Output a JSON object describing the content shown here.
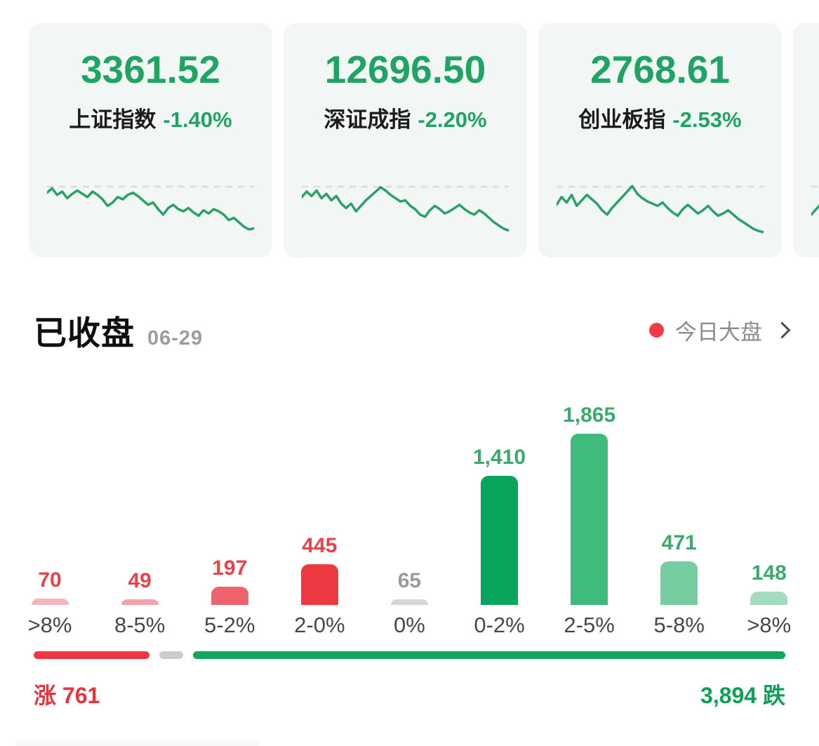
{
  "colors": {
    "index_green": "#1fa463",
    "card_bg": "#f2f6f4",
    "spark_line": "#2ba16a",
    "dash_gray": "#d9dcda",
    "title_black": "#101010",
    "date_gray": "#9c9c9c",
    "link_gray": "#8b8b8b",
    "chevron_gray": "#4d4d4d",
    "dot_red": "#f23b43",
    "axis_gray": "#474747",
    "up_red": "#e2373f",
    "down_green": "#0fa058"
  },
  "index_cards": [
    {
      "value": "3361.52",
      "name": "上证指数",
      "change": "-1.40%",
      "sparkline": [
        80,
        88,
        76,
        82,
        70,
        78,
        84,
        78,
        72,
        82,
        76,
        68,
        56,
        62,
        72,
        68,
        76,
        80,
        74,
        66,
        58,
        62,
        50,
        40,
        52,
        58,
        50,
        46,
        52,
        44,
        38,
        48,
        42,
        50,
        46,
        40,
        30,
        34,
        26,
        18,
        13,
        15
      ]
    },
    {
      "value": "12696.50",
      "name": "深证成指",
      "change": "-2.20%",
      "sparkline": [
        72,
        82,
        74,
        84,
        70,
        78,
        66,
        74,
        60,
        52,
        60,
        46,
        56,
        66,
        74,
        82,
        90,
        84,
        76,
        70,
        64,
        66,
        56,
        50,
        40,
        36,
        48,
        56,
        50,
        42,
        46,
        52,
        58,
        50,
        44,
        40,
        48,
        42,
        34,
        26,
        20,
        14,
        11
      ]
    },
    {
      "value": "2768.61",
      "name": "创业板指",
      "change": "-2.53%",
      "sparkline": [
        58,
        72,
        62,
        76,
        56,
        66,
        76,
        68,
        60,
        48,
        40,
        52,
        62,
        72,
        82,
        92,
        78,
        70,
        64,
        60,
        56,
        62,
        52,
        44,
        38,
        50,
        58,
        50,
        42,
        48,
        56,
        46,
        38,
        42,
        48,
        40,
        32,
        26,
        20,
        14,
        10,
        8
      ]
    },
    {
      "value": "",
      "name": "",
      "change": "",
      "sparkline": [
        40,
        68,
        46,
        58,
        50,
        62,
        54,
        44,
        50,
        40,
        34,
        40,
        30,
        24,
        18,
        12
      ]
    }
  ],
  "section": {
    "title": "已收盘",
    "date": "06-29",
    "link_label": "今日大盘"
  },
  "distribution": {
    "bars": [
      {
        "range": ">8%",
        "count": "70",
        "value": 70,
        "bar_color": "#f5b6bb",
        "count_color": "#e5444c"
      },
      {
        "range": "8-5%",
        "count": "49",
        "value": 49,
        "bar_color": "#f2a3aa",
        "count_color": "#e5444c"
      },
      {
        "range": "5-2%",
        "count": "197",
        "value": 197,
        "bar_color": "#f0626c",
        "count_color": "#e5444c"
      },
      {
        "range": "2-0%",
        "count": "445",
        "value": 445,
        "bar_color": "#ee3842",
        "count_color": "#e5444c"
      },
      {
        "range": "0%",
        "count": "65",
        "value": 65,
        "bar_color": "#d6d6d6",
        "count_color": "#9b9b9b"
      },
      {
        "range": "0-2%",
        "count": "1,410",
        "value": 1410,
        "bar_color": "#09a55d",
        "count_color": "#3aab6f"
      },
      {
        "range": "2-5%",
        "count": "1,865",
        "value": 1865,
        "bar_color": "#3fbc7d",
        "count_color": "#3aab6f"
      },
      {
        "range": "5-8%",
        "count": "471",
        "value": 471,
        "bar_color": "#75cda0",
        "count_color": "#3aab6f"
      },
      {
        "range": ">8%",
        "count": "148",
        "value": 148,
        "bar_color": "#a3ddbf",
        "count_color": "#3aab6f"
      }
    ]
  },
  "summary": {
    "up_text": "涨 761",
    "down_text": "3,894 跌",
    "up": 761,
    "flat": 65,
    "down": 3894,
    "bar_red": "#ee3742",
    "bar_gray": "#cccccc",
    "bar_green": "#12a75c"
  },
  "chart_data": [
    {
      "type": "bar",
      "title": "已收盘 06-29",
      "categories": [
        ">8%",
        "8-5%",
        "5-2%",
        "2-0%",
        "0%",
        "0-2%",
        "2-5%",
        "5-8%",
        ">8%"
      ],
      "values": [
        70,
        49,
        197,
        445,
        65,
        1410,
        1865,
        471,
        148
      ],
      "ylim": [
        0,
        1865
      ],
      "grid": false,
      "annotations": [
        "涨 761",
        "3,894 跌"
      ],
      "note": "red buckets = gainers, gray = flat, green buckets = losers"
    },
    {
      "type": "line",
      "title": "上证指数",
      "final_value": 3361.52,
      "change_pct": -1.4
    },
    {
      "type": "line",
      "title": "深证成指",
      "final_value": 12696.5,
      "change_pct": -2.2
    },
    {
      "type": "line",
      "title": "创业板指",
      "final_value": 2768.61,
      "change_pct": -2.53
    }
  ]
}
